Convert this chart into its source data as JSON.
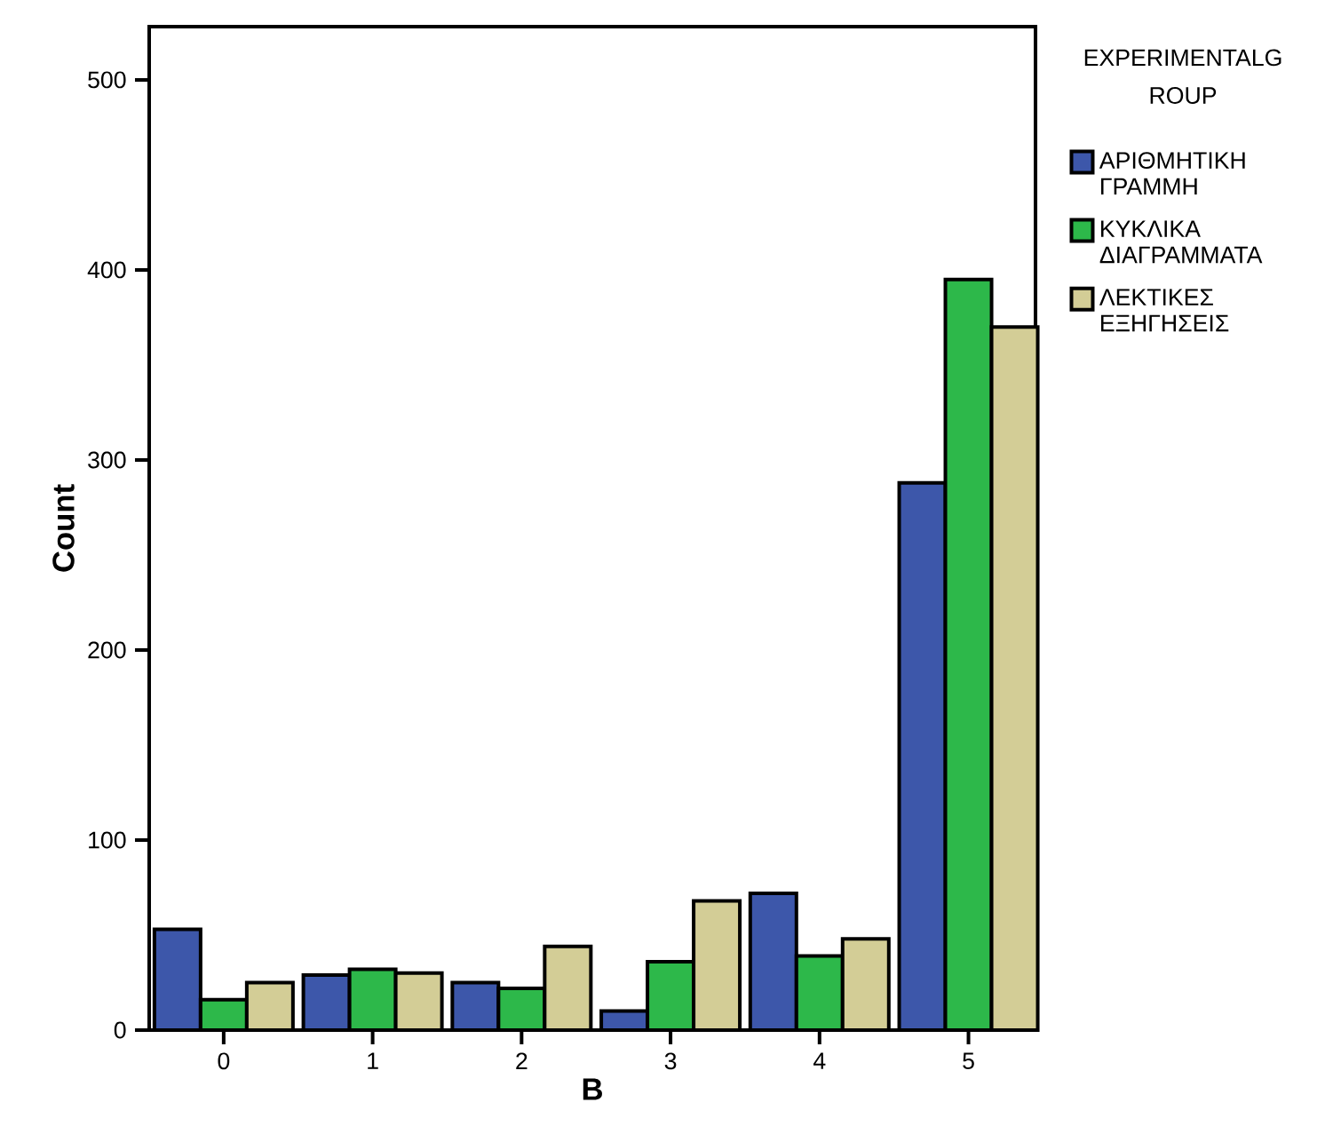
{
  "chart_data": {
    "type": "bar",
    "xlabel": "B",
    "ylabel": "Count",
    "legend_title": "EXPERIMENTALG ROUP",
    "legend": "top right",
    "categories": [
      "0",
      "1",
      "2",
      "3",
      "4",
      "5"
    ],
    "ylim": [
      0,
      528
    ],
    "yticks": [
      0,
      100,
      200,
      300,
      400,
      500
    ],
    "series": [
      {
        "name": "ΑΡΙΘΜΗΤΙΚΗ ΓΡΑΜΜΗ",
        "color": "#3d57aa",
        "values": [
          53,
          29,
          25,
          10,
          72,
          288
        ]
      },
      {
        "name": "ΚΥΚΛΙΚΑ ΔΙΑΓΡΑΜΜΑΤΑ",
        "color": "#2db84a",
        "values": [
          16,
          32,
          22,
          36,
          39,
          395
        ]
      },
      {
        "name": "ΛΕΚΤΙΚΕΣ ΕΞΗΓΗΣΕΙΣ",
        "color": "#d3cd96",
        "values": [
          25,
          30,
          44,
          68,
          48,
          370
        ]
      }
    ]
  }
}
